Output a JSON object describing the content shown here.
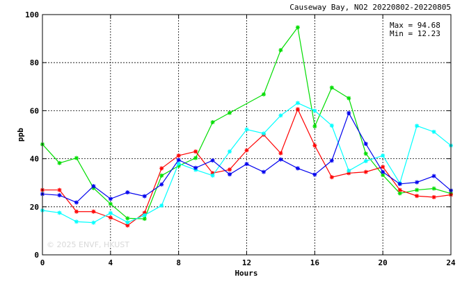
{
  "chart_data": {
    "type": "line",
    "title": "Causeway Bay, NO2 20220802-20220805",
    "xlabel": "Hours",
    "ylabel": "ppb",
    "xlim": [
      0,
      24
    ],
    "ylim": [
      0,
      100
    ],
    "xticks": [
      0,
      4,
      8,
      12,
      16,
      20,
      24
    ],
    "yticks": [
      0,
      20,
      40,
      60,
      80,
      100
    ],
    "grid": true,
    "stats": {
      "max": "Max = 94.68",
      "min": "Min = 12.23"
    },
    "watermark": "© 2025  ENVF, HKUST",
    "x": [
      0,
      1,
      2,
      3,
      4,
      5,
      6,
      7,
      8,
      9,
      10,
      11,
      12,
      13,
      14,
      15,
      16,
      17,
      18,
      19,
      20,
      21,
      22,
      23,
      24
    ],
    "series": [
      {
        "color": "#00dd00",
        "values": [
          46.0,
          38.2,
          40.3,
          27.8,
          21.2,
          15.2,
          15.0,
          33.0,
          37.0,
          40.3,
          55.2,
          59.1,
          null,
          66.8,
          85.2,
          94.68,
          53.5,
          69.6,
          65.2,
          42.1,
          33.2,
          25.6,
          27.0,
          27.6,
          25.5
        ]
      },
      {
        "color": "#ff0000",
        "values": [
          27.0,
          27.0,
          18.0,
          18.0,
          15.5,
          12.23,
          17.5,
          36.0,
          41.3,
          43.0,
          34.0,
          35.5,
          43.5,
          50.0,
          42.3,
          60.6,
          45.5,
          32.3,
          34.0,
          34.5,
          36.6,
          27.0,
          24.5,
          24.0,
          25.0
        ]
      },
      {
        "color": "#00ffff",
        "values": [
          18.5,
          17.5,
          13.8,
          13.4,
          17.4,
          13.5,
          16.5,
          20.5,
          38.0,
          35.4,
          33.0,
          43.0,
          52.2,
          50.5,
          58.0,
          63.2,
          60.0,
          53.8,
          35.0,
          39.0,
          41.3,
          29.8,
          53.7,
          51.2,
          45.5
        ]
      },
      {
        "color": "#0000ee",
        "values": [
          25.3,
          24.8,
          21.8,
          28.6,
          23.3,
          26.0,
          24.4,
          29.3,
          39.5,
          36.2,
          39.3,
          33.5,
          37.8,
          34.5,
          39.7,
          36.0,
          33.4,
          39.2,
          59.0,
          46.2,
          34.5,
          29.5,
          30.2,
          32.8,
          26.8
        ]
      }
    ]
  }
}
